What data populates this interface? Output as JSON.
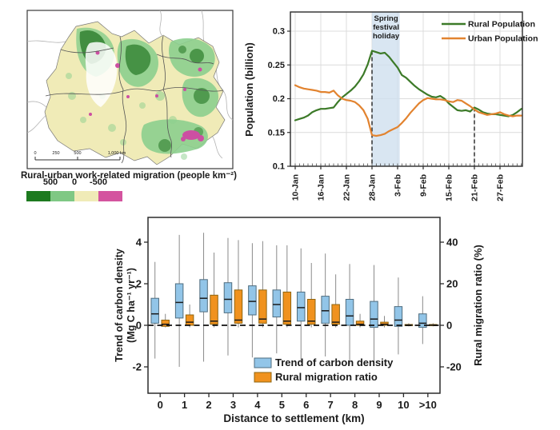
{
  "map_panel": {
    "caption": "Rural-urban work-related migration (people km⁻²)",
    "scalebar_labels": [
      "0",
      "250",
      "500",
      "1,000 km"
    ],
    "colorbar": {
      "tick_labels": [
        "500",
        "0",
        "-500"
      ],
      "colors": [
        "#1d7a1f",
        "#7fc884",
        "#f0ebb7",
        "#d4549f"
      ]
    }
  },
  "chart_data": [
    {
      "type": "line",
      "title": "",
      "ylabel": "Population (billion)",
      "ylim": [
        0.1,
        0.33
      ],
      "yticks": [
        0.1,
        0.15,
        0.2,
        0.25,
        0.3
      ],
      "x_tick_labels": [
        "10-Jan",
        "16-Jan",
        "22-Jan",
        "28-Jan",
        "3-Feb",
        "9-Feb",
        "15-Feb",
        "21-Feb",
        "27-Feb"
      ],
      "x_tick_days": [
        0,
        6,
        12,
        18,
        24,
        30,
        36,
        42,
        48
      ],
      "grid": true,
      "annotation": {
        "label": "Spring festival holiday",
        "band_days": [
          18,
          24.5
        ],
        "band_color": "#cfe0ef"
      },
      "dashed_vlines_days": [
        18,
        42
      ],
      "series": [
        {
          "name": "Rural Population",
          "color": "#3c7a28",
          "values": [
            0.168,
            0.17,
            0.172,
            0.175,
            0.18,
            0.183,
            0.185,
            0.185,
            0.186,
            0.187,
            0.195,
            0.202,
            0.207,
            0.212,
            0.218,
            0.226,
            0.236,
            0.251,
            0.271,
            0.269,
            0.267,
            0.268,
            0.262,
            0.254,
            0.246,
            0.235,
            0.231,
            0.225,
            0.219,
            0.214,
            0.21,
            0.206,
            0.203,
            0.202,
            0.204,
            0.2,
            0.193,
            0.188,
            0.183,
            0.182,
            0.183,
            0.181,
            0.187,
            0.184,
            0.18,
            0.178,
            0.177,
            0.177,
            0.176,
            0.175,
            0.174,
            0.176,
            0.18,
            0.185
          ]
        },
        {
          "name": "Urban Population",
          "color": "#e2832f",
          "values": [
            0.22,
            0.217,
            0.215,
            0.214,
            0.213,
            0.212,
            0.21,
            0.21,
            0.209,
            0.212,
            0.205,
            0.2,
            0.198,
            0.197,
            0.195,
            0.19,
            0.183,
            0.17,
            0.146,
            0.145,
            0.146,
            0.148,
            0.152,
            0.155,
            0.158,
            0.164,
            0.171,
            0.179,
            0.186,
            0.193,
            0.198,
            0.201,
            0.2,
            0.199,
            0.199,
            0.198,
            0.196,
            0.195,
            0.198,
            0.197,
            0.193,
            0.189,
            0.184,
            0.18,
            0.178,
            0.176,
            0.177,
            0.178,
            0.18,
            0.177,
            0.175,
            0.174,
            0.175,
            0.175
          ]
        }
      ]
    },
    {
      "type": "boxplot",
      "categories": [
        "0",
        "1",
        "2",
        "3",
        "4",
        "5",
        "6",
        "7",
        "8",
        "9",
        "10",
        ">10"
      ],
      "xlabel": "Distance to settlement (km)",
      "left_axis": {
        "label_line1": "Trend of carbon density",
        "label_line2": "(Mg C ha⁻¹ yr⁻¹)",
        "ticks": [
          -2,
          0,
          2,
          4
        ],
        "lim": [
          -3.3,
          5.2
        ]
      },
      "right_axis": {
        "label": "Rural migration ratio (%)",
        "ticks": [
          -20,
          0,
          20,
          40
        ],
        "lim": [
          -33,
          52
        ]
      },
      "dashed_hline": 0,
      "series": [
        {
          "name": "Trend of carbon density",
          "axis": "left",
          "color": "#92c5e8",
          "border": "#4f6d7f",
          "boxes": [
            [
              -1.6,
              0.1,
              0.55,
              1.3,
              3.05
            ],
            [
              -2.0,
              0.35,
              1.1,
              2.0,
              4.35
            ],
            [
              -1.75,
              0.65,
              1.3,
              2.2,
              4.45
            ],
            [
              -1.45,
              0.6,
              1.25,
              2.05,
              4.2
            ],
            [
              -1.55,
              0.5,
              1.15,
              1.9,
              3.95
            ],
            [
              -1.35,
              0.4,
              1.0,
              1.7,
              3.85
            ],
            [
              -1.8,
              0.2,
              0.85,
              1.6,
              3.7
            ],
            [
              -1.5,
              0.1,
              0.7,
              1.4,
              3.45
            ],
            [
              -1.9,
              0.0,
              0.45,
              1.25,
              2.95
            ],
            [
              -1.8,
              -0.1,
              0.3,
              1.15,
              2.9
            ],
            [
              -1.4,
              -0.05,
              0.25,
              0.9,
              2.3
            ],
            [
              -0.9,
              -0.1,
              0.1,
              0.55,
              1.4
            ]
          ]
        },
        {
          "name": "Rural migration ratio",
          "axis": "right",
          "color": "#f0921e",
          "border": "#8f6510",
          "boxes": [
            [
              -1,
              -0.5,
              0.5,
              2.5,
              5.5
            ],
            [
              -1,
              0,
              1.5,
              5,
              10
            ],
            [
              -1,
              0.5,
              2,
              14.5,
              35
            ],
            [
              -1,
              1,
              2.5,
              17,
              41
            ],
            [
              -1,
              1,
              3,
              17,
              40.5
            ],
            [
              -1,
              0.5,
              2,
              16,
              38.5
            ],
            [
              -1,
              0.5,
              2,
              12.5,
              30
            ],
            [
              -1,
              0.5,
              1.5,
              10,
              24.5
            ],
            [
              -1,
              0,
              0.5,
              2,
              5.5
            ],
            [
              -1,
              0,
              0.5,
              1.5,
              4.5
            ],
            [
              -0.5,
              -0.2,
              0.1,
              0.4,
              1
            ],
            [
              -0.5,
              -0.2,
              0.1,
              0.4,
              1
            ]
          ]
        }
      ]
    }
  ]
}
